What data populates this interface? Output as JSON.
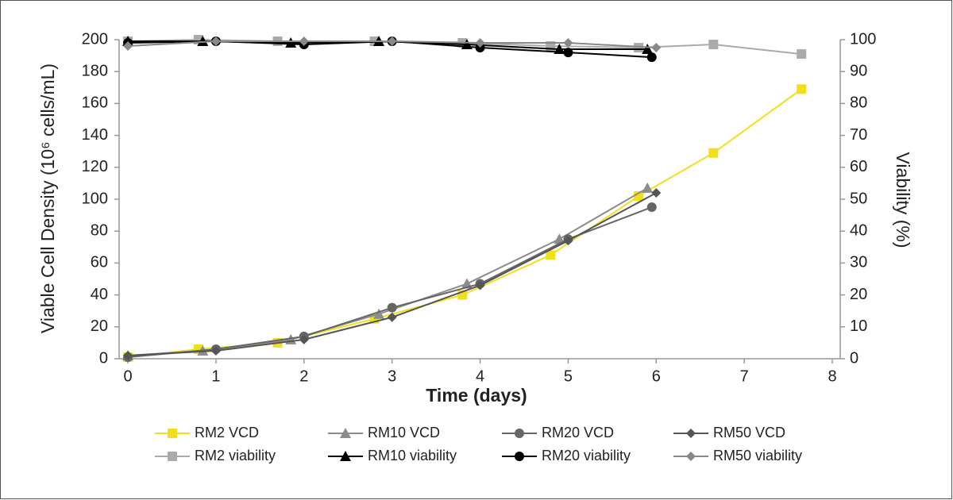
{
  "chart_data": {
    "type": "line",
    "xlabel": "Time (days)",
    "ylabel": "Viable Cell Density (10⁶ cells/mL)",
    "y2label": "Viability (%)",
    "xlim": [
      -0.1,
      8
    ],
    "xticks": [
      0,
      1,
      2,
      3,
      4,
      5,
      6,
      7,
      8
    ],
    "ylim": [
      0,
      200
    ],
    "yticks": [
      0,
      20,
      40,
      60,
      80,
      100,
      120,
      140,
      160,
      180,
      200
    ],
    "y2lim": [
      0,
      100
    ],
    "y2ticks": [
      0,
      10,
      20,
      30,
      40,
      50,
      60,
      70,
      80,
      90,
      100
    ],
    "grid": false,
    "legend": "bottom",
    "series": [
      {
        "name": "RM2 VCD",
        "color": "#f0e01c",
        "marker": "square",
        "x": [
          0,
          0.8,
          1.7,
          2.8,
          3.8,
          4.8,
          5.8,
          6.65,
          7.65
        ],
        "values": [
          1,
          6,
          10,
          25,
          40,
          65,
          102,
          129,
          169
        ]
      },
      {
        "name": "RM10 VCD",
        "color": "#8c8c8c",
        "marker": "triangle",
        "x": [
          0,
          0.85,
          1.85,
          2.85,
          3.85,
          4.9,
          5.9
        ],
        "values": [
          2,
          5,
          12,
          28,
          47,
          75,
          107
        ]
      },
      {
        "name": "RM20 VCD",
        "color": "#666666",
        "marker": "circle",
        "x": [
          0,
          1,
          2,
          3,
          4,
          5,
          5.95
        ],
        "values": [
          1,
          6,
          14,
          32,
          47,
          75,
          95
        ]
      },
      {
        "name": "RM50 VCD",
        "color": "#555555",
        "marker": "diamond",
        "x": [
          0,
          1,
          2,
          3,
          4,
          5,
          6
        ],
        "values": [
          2,
          5,
          12,
          26,
          46,
          74,
          104
        ]
      },
      {
        "name": "RM2 viability",
        "color": "#aaaaaa",
        "marker": "square",
        "axis": "y2",
        "x": [
          0,
          0.8,
          1.7,
          2.8,
          3.8,
          4.8,
          5.8,
          6.65,
          7.65
        ],
        "values": [
          99.5,
          100,
          99.5,
          99.5,
          99,
          98,
          97.5,
          98.5,
          95.5
        ]
      },
      {
        "name": "RM10 viability",
        "color": "#000000",
        "marker": "triangle",
        "axis": "y2",
        "x": [
          0,
          0.85,
          1.85,
          2.85,
          3.85,
          4.9,
          5.9
        ],
        "values": [
          99.5,
          99.5,
          99,
          99.5,
          98.5,
          97,
          97
        ]
      },
      {
        "name": "RM20 viability",
        "color": "#000000",
        "marker": "circle",
        "axis": "y2",
        "x": [
          0,
          1,
          2,
          3,
          4,
          5,
          5.95
        ],
        "values": [
          99,
          99.5,
          98.5,
          99.5,
          97.5,
          96,
          94.5
        ]
      },
      {
        "name": "RM50 viability",
        "color": "#888888",
        "marker": "diamond",
        "axis": "y2",
        "x": [
          0,
          1,
          2,
          3,
          4,
          5,
          6
        ],
        "values": [
          98,
          99.5,
          99.5,
          99.5,
          99,
          99,
          97.5
        ]
      }
    ]
  }
}
